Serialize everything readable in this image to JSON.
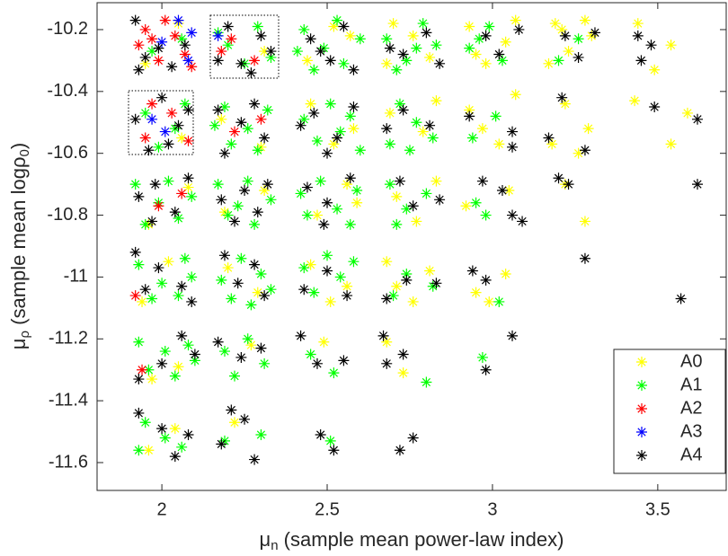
{
  "chart_data": {
    "type": "scatter",
    "xlabel": [
      "μ",
      "n",
      " (sample mean power-law index)"
    ],
    "ylabel": [
      "μ",
      "ρ",
      " (sample mean log",
      "ρ",
      "0",
      ")"
    ],
    "xlim": [
      1.804,
      3.707
    ],
    "ylim": [
      -11.69,
      -10.113
    ],
    "xticks": [
      2,
      2.5,
      3,
      3.5
    ],
    "yticks": [
      -11.6,
      -11.4,
      -11.2,
      -11,
      -10.8,
      -10.6,
      -10.4,
      -10.2
    ],
    "legend": "lower right",
    "series": [
      {
        "name": "A0",
        "color": "#ffff00",
        "x": [
          2.05,
          1.95,
          2.31,
          2.57,
          2.44,
          2.52,
          2.7,
          2.81,
          2.76,
          2.68,
          2.93,
          3.04,
          2.98,
          3.07,
          2.95,
          3.19,
          3.28,
          3.23,
          3.17,
          3.3,
          3.21,
          3.44,
          3.54,
          3.49,
          2.06,
          2.18,
          2.3,
          2.45,
          2.58,
          2.52,
          2.69,
          2.79,
          2.83,
          2.93,
          3.02,
          3.07,
          2.97,
          3.18,
          3.22,
          3.29,
          3.26,
          3.43,
          3.54,
          3.59,
          2.08,
          1.96,
          2.31,
          2.19,
          2.56,
          2.47,
          2.59,
          2.71,
          2.83,
          2.77,
          2.92,
          3.05,
          3.22,
          3.28,
          2.02,
          1.94,
          2.2,
          2.29,
          2.45,
          2.56,
          2.51,
          2.68,
          2.76,
          2.71,
          2.81,
          2.95,
          3.04,
          2.99,
          2.05,
          1.97,
          2.27,
          2.49,
          2.73,
          2.68,
          2.04,
          1.96,
          2.22
        ],
        "y": [
          -10.18,
          -10.31,
          -10.27,
          -10.22,
          -10.3,
          -10.19,
          -10.18,
          -10.29,
          -10.22,
          -10.31,
          -10.19,
          -10.24,
          -10.31,
          -10.17,
          -10.28,
          -10.18,
          -10.17,
          -10.27,
          -10.31,
          -10.22,
          -10.2,
          -10.18,
          -10.25,
          -10.33,
          -10.55,
          -10.49,
          -10.58,
          -10.44,
          -10.52,
          -10.57,
          -10.47,
          -10.53,
          -10.43,
          -10.46,
          -10.57,
          -10.41,
          -10.52,
          -10.57,
          -10.44,
          -10.52,
          -10.6,
          -10.43,
          -10.57,
          -10.47,
          -10.71,
          -10.83,
          -10.72,
          -10.79,
          -10.7,
          -10.8,
          -10.76,
          -10.74,
          -10.69,
          -10.82,
          -10.77,
          -10.72,
          -10.7,
          -10.82,
          -10.95,
          -11.08,
          -10.97,
          -11.05,
          -10.96,
          -11.03,
          -11.08,
          -10.95,
          -11.08,
          -11.03,
          -10.98,
          -11.05,
          -10.99,
          -11.08,
          -11.29,
          -11.33,
          -11.22,
          -11.21,
          -11.31,
          -11.21,
          -11.49,
          -11.56,
          -11.47
        ]
      },
      {
        "name": "A1",
        "color": "#00ff00",
        "x": [
          1.97,
          2.06,
          2.2,
          2.29,
          2.25,
          2.17,
          2.33,
          2.43,
          2.49,
          2.55,
          2.6,
          2.46,
          2.53,
          2.41,
          2.68,
          2.74,
          2.79,
          2.83,
          2.71,
          2.77,
          2.93,
          2.99,
          3.03,
          2.96,
          3.2,
          3.26,
          1.95,
          2.04,
          2.07,
          1.99,
          2.19,
          2.26,
          2.32,
          2.21,
          2.29,
          2.16,
          2.43,
          2.51,
          2.57,
          2.47,
          2.54,
          2.6,
          2.72,
          2.77,
          2.69,
          2.82,
          2.75,
          2.94,
          3.01,
          1.92,
          1.99,
          2.05,
          2.09,
          1.95,
          2.02,
          2.17,
          2.23,
          2.28,
          2.33,
          2.2,
          2.26,
          2.42,
          2.48,
          2.53,
          2.57,
          2.44,
          2.59,
          2.69,
          2.74,
          2.8,
          2.71,
          2.95,
          2.98,
          1.93,
          2.0,
          2.07,
          1.97,
          2.05,
          2.09,
          2.18,
          2.24,
          2.3,
          2.21,
          2.33,
          2.27,
          2.43,
          2.5,
          2.54,
          2.46,
          2.58,
          2.74,
          2.7,
          2.82,
          3.02,
          1.93,
          2.01,
          2.08,
          1.96,
          2.04,
          2.1,
          2.19,
          2.26,
          2.31,
          2.22,
          2.45,
          2.52,
          2.8,
          2.97,
          1.95,
          2.01,
          2.06,
          1.93,
          2.3,
          2.19,
          2.51
        ],
        "y": [
          -10.27,
          -10.23,
          -10.25,
          -10.19,
          -10.31,
          -10.21,
          -10.29,
          -10.2,
          -10.26,
          -10.31,
          -10.23,
          -10.33,
          -10.17,
          -10.27,
          -10.23,
          -10.3,
          -10.18,
          -10.25,
          -10.33,
          -10.26,
          -10.26,
          -10.19,
          -10.3,
          -10.23,
          -10.3,
          -10.23,
          -10.47,
          -10.52,
          -10.44,
          -10.58,
          -10.45,
          -10.52,
          -10.46,
          -10.57,
          -10.59,
          -10.51,
          -10.49,
          -10.44,
          -10.48,
          -10.56,
          -10.53,
          -10.59,
          -10.44,
          -10.5,
          -10.57,
          -10.55,
          -10.59,
          -10.55,
          -10.48,
          -10.7,
          -10.76,
          -10.81,
          -10.74,
          -10.83,
          -10.69,
          -10.7,
          -10.77,
          -10.83,
          -10.75,
          -10.8,
          -10.69,
          -10.73,
          -10.69,
          -10.78,
          -10.83,
          -10.8,
          -10.72,
          -10.7,
          -10.78,
          -10.73,
          -10.83,
          -10.76,
          -10.8,
          -10.96,
          -11.02,
          -10.94,
          -11.07,
          -11.06,
          -11.0,
          -11.01,
          -10.94,
          -10.99,
          -11.07,
          -11.04,
          -11.09,
          -10.97,
          -10.93,
          -11.0,
          -11.05,
          -10.95,
          -10.99,
          -11.06,
          -11.03,
          -11.08,
          -11.21,
          -11.24,
          -11.22,
          -11.3,
          -11.32,
          -11.27,
          -11.24,
          -11.2,
          -11.28,
          -11.32,
          -11.25,
          -11.31,
          -11.34,
          -11.26,
          -11.47,
          -11.52,
          -11.55,
          -11.56,
          -11.51,
          -11.53,
          -11.53
        ]
      },
      {
        "name": "A2",
        "color": "#ff0000",
        "x": [
          1.95,
          2.01,
          2.07,
          1.99,
          1.93,
          2.04,
          2.09,
          1.97,
          2.21,
          2.28,
          2.18,
          1.95,
          2.03,
          2.08,
          1.97,
          2.22,
          2.3,
          1.99,
          2.06,
          1.92,
          1.94
        ],
        "y": [
          -10.2,
          -10.17,
          -10.28,
          -10.3,
          -10.25,
          -10.22,
          -10.32,
          -10.23,
          -10.23,
          -10.3,
          -10.27,
          -10.55,
          -10.47,
          -10.56,
          -10.44,
          -10.53,
          -10.49,
          -10.77,
          -10.73,
          -11.06,
          -11.3
        ]
      },
      {
        "name": "A3",
        "color": "#0000ff",
        "x": [
          2.05,
          2.09,
          2.0,
          2.08,
          2.17,
          1.97,
          2.01
        ],
        "y": [
          -10.17,
          -10.21,
          -10.24,
          -10.3,
          -10.22,
          -10.49,
          -10.53
        ]
      },
      {
        "name": "A4",
        "color": "#000000",
        "x": [
          1.92,
          1.99,
          2.03,
          1.95,
          2.07,
          1.93,
          2.2,
          2.24,
          2.3,
          2.27,
          2.17,
          2.33,
          2.45,
          2.51,
          2.55,
          2.58,
          2.48,
          2.69,
          2.8,
          2.84,
          2.73,
          2.98,
          3.02,
          3.08,
          3.22,
          3.26,
          3.31,
          3.44,
          3.45,
          3.48,
          1.92,
          2.0,
          2.05,
          1.96,
          2.08,
          2.02,
          2.17,
          2.24,
          2.31,
          2.19,
          2.28,
          2.42,
          2.46,
          2.53,
          2.58,
          2.5,
          2.68,
          2.73,
          2.81,
          2.93,
          3.06,
          3.06,
          3.21,
          3.28,
          3.17,
          3.49,
          3.62,
          1.93,
          1.98,
          2.04,
          2.08,
          1.97,
          2.18,
          2.25,
          2.29,
          2.32,
          2.22,
          2.44,
          2.5,
          2.57,
          2.49,
          2.76,
          2.84,
          2.72,
          2.97,
          3.03,
          3.06,
          3.09,
          3.2,
          3.23,
          3.62,
          1.92,
          1.99,
          2.06,
          2.09,
          1.95,
          2.19,
          2.23,
          2.31,
          2.28,
          2.43,
          2.5,
          2.56,
          2.74,
          2.83,
          2.68,
          2.94,
          2.98,
          3.28,
          3.57,
          1.93,
          2.0,
          2.06,
          2.1,
          2.17,
          2.24,
          2.3,
          2.42,
          2.47,
          2.55,
          2.67,
          2.68,
          2.73,
          3.06,
          2.98,
          1.93,
          2.0,
          2.08,
          2.04,
          2.18,
          2.25,
          2.28,
          2.21,
          2.48,
          2.52,
          2.76,
          2.72
        ],
        "y": [
          -10.17,
          -10.26,
          -10.32,
          -10.29,
          -10.25,
          -10.33,
          -10.19,
          -10.31,
          -10.22,
          -10.34,
          -10.3,
          -10.27,
          -10.23,
          -10.3,
          -10.19,
          -10.33,
          -10.27,
          -10.26,
          -10.21,
          -10.31,
          -10.28,
          -10.22,
          -10.28,
          -10.2,
          -10.22,
          -10.29,
          -10.21,
          -10.22,
          -10.3,
          -10.25,
          -10.49,
          -10.42,
          -10.51,
          -10.59,
          -10.46,
          -10.57,
          -10.46,
          -10.5,
          -10.55,
          -10.6,
          -10.44,
          -10.51,
          -10.47,
          -10.55,
          -10.45,
          -10.6,
          -10.52,
          -10.46,
          -10.51,
          -10.48,
          -10.53,
          -10.58,
          -10.42,
          -10.59,
          -10.55,
          -10.45,
          -10.49,
          -10.74,
          -10.7,
          -10.79,
          -10.68,
          -10.82,
          -10.75,
          -10.72,
          -10.79,
          -10.7,
          -10.82,
          -10.71,
          -10.76,
          -10.68,
          -10.83,
          -10.77,
          -10.75,
          -10.69,
          -10.69,
          -10.72,
          -10.8,
          -10.82,
          -10.68,
          -10.7,
          -10.7,
          -10.92,
          -10.97,
          -11.03,
          -11.08,
          -11.04,
          -10.93,
          -11.02,
          -11.06,
          -10.96,
          -11.04,
          -10.98,
          -11.06,
          -11.01,
          -11.02,
          -11.07,
          -10.98,
          -11.01,
          -10.94,
          -11.07,
          -11.33,
          -11.28,
          -11.19,
          -11.25,
          -11.21,
          -11.26,
          -11.23,
          -11.19,
          -11.28,
          -11.27,
          -11.19,
          -11.28,
          -11.25,
          -11.19,
          -11.3,
          -11.44,
          -11.49,
          -11.51,
          -11.58,
          -11.54,
          -11.46,
          -11.59,
          -11.43,
          -11.51,
          -11.56,
          -11.52,
          -11.56
        ]
      }
    ]
  }
}
